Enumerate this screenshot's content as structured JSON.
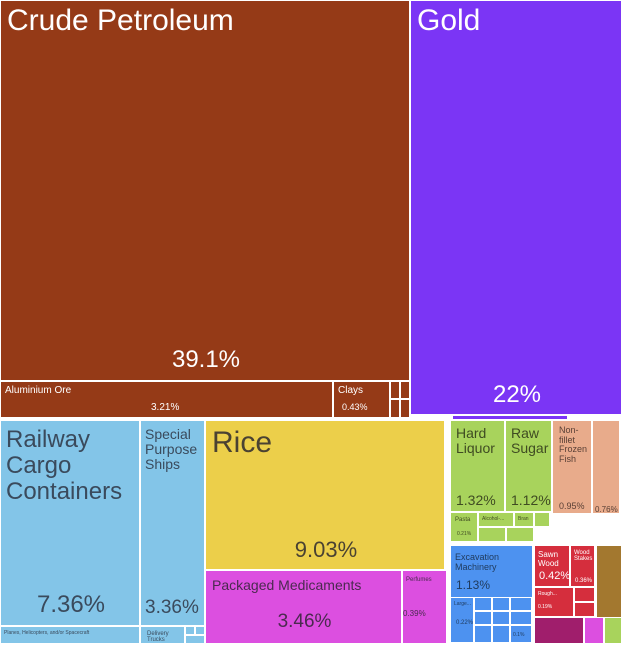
{
  "chart_data": {
    "type": "treemap",
    "unit": "%",
    "items": [
      {
        "name": "Crude Petroleum",
        "value": 39.1,
        "value_label": "39.1%",
        "color": "#953a17"
      },
      {
        "name": "Gold",
        "value": 22,
        "value_label": "22%",
        "color": "#7b35f5"
      },
      {
        "name": "Aluminium Ore",
        "value": 3.21,
        "value_label": "3.21%",
        "color": "#953a17"
      },
      {
        "name": "Clays",
        "value": 0.43,
        "value_label": "0.43%",
        "color": "#953a17"
      },
      {
        "name": "Railway Cargo Containers",
        "value": 7.36,
        "value_label": "7.36%",
        "color": "#83c5e8"
      },
      {
        "name": "Special Purpose Ships",
        "value": 3.36,
        "value_label": "3.36%",
        "color": "#83c5e8"
      },
      {
        "name": "Planes, Helicopters, and/or Spacecraft",
        "value": null,
        "value_label": "",
        "color": "#83c5e8"
      },
      {
        "name": "Delivery Trucks",
        "value": null,
        "value_label": "",
        "color": "#83c5e8"
      },
      {
        "name": "Rice",
        "value": 9.03,
        "value_label": "9.03%",
        "color": "#eccf4a"
      },
      {
        "name": "Packaged Medicaments",
        "value": 3.46,
        "value_label": "3.46%",
        "color": "#dc4fe0"
      },
      {
        "name": "Perfumes",
        "value": 0.39,
        "value_label": "0.39%",
        "color": "#dc4fe0"
      },
      {
        "name": "Hard Liquor",
        "value": 1.32,
        "value_label": "1.32%",
        "color": "#a8d35c"
      },
      {
        "name": "Raw Sugar",
        "value": 1.12,
        "value_label": "1.12%",
        "color": "#a8d35c"
      },
      {
        "name": "Pasta",
        "value": 0.21,
        "value_label": "0.21%",
        "color": "#a8d35c"
      },
      {
        "name": "Alcohol-...",
        "value": null,
        "value_label": "",
        "color": "#a8d35c"
      },
      {
        "name": "Bran",
        "value": null,
        "value_label": "",
        "color": "#a8d35c"
      },
      {
        "name": "Non-fillet Frozen Fish",
        "value": 0.95,
        "value_label": "0.95%",
        "color": "#e8ab8b"
      },
      {
        "name": "",
        "value": 0.76,
        "value_label": "0.76%",
        "color": "#e8ab8b"
      },
      {
        "name": "Excavation Machinery",
        "value": 1.13,
        "value_label": "1.13%",
        "color": "#4d92f0"
      },
      {
        "name": "Large...",
        "value": 0.22,
        "value_label": "0.22%",
        "color": "#4d92f0"
      },
      {
        "name": "",
        "value": 0.1,
        "value_label": "0.1%",
        "color": "#4d92f0"
      },
      {
        "name": "Sawn Wood",
        "value": 0.42,
        "value_label": "0.42%",
        "color": "#d52e3d"
      },
      {
        "name": "Wood Stakes",
        "value": 0.36,
        "value_label": "0.36%",
        "color": "#d52e3d"
      },
      {
        "name": "Rough...",
        "value": 0.19,
        "value_label": "0.19%",
        "color": "#d52e3d"
      },
      {
        "name": "",
        "value": null,
        "value_label": "",
        "color": "#a3782f"
      },
      {
        "name": "",
        "value": null,
        "value_label": "",
        "color": "#a01e6c"
      },
      {
        "name": "",
        "value": null,
        "value_label": "",
        "color": "#dc4fe0"
      },
      {
        "name": "",
        "value": null,
        "value_label": "",
        "color": "#a8d35c"
      }
    ]
  }
}
